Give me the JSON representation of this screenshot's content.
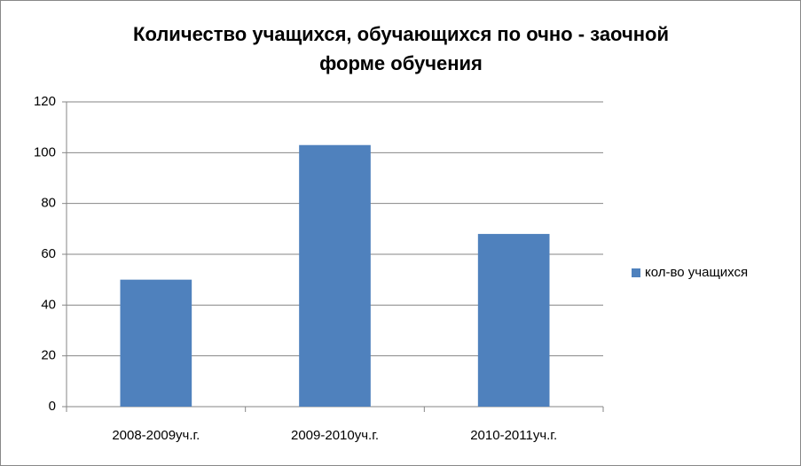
{
  "chart_data": {
    "type": "bar",
    "title": [
      "Количество  учащихся, обучающихся по очно - заочной",
      "форме обучения"
    ],
    "categories": [
      "2008-2009уч.г.",
      "2009-2010уч.г.",
      "2010-2011уч.г."
    ],
    "series": [
      {
        "name": "кол-во учащихся",
        "color": "#4f81bd",
        "values": [
          50,
          103,
          68
        ]
      }
    ],
    "ylim": [
      0,
      120
    ],
    "yticks": [
      0,
      20,
      40,
      60,
      80,
      100,
      120
    ],
    "grid": true,
    "legend": "right"
  }
}
